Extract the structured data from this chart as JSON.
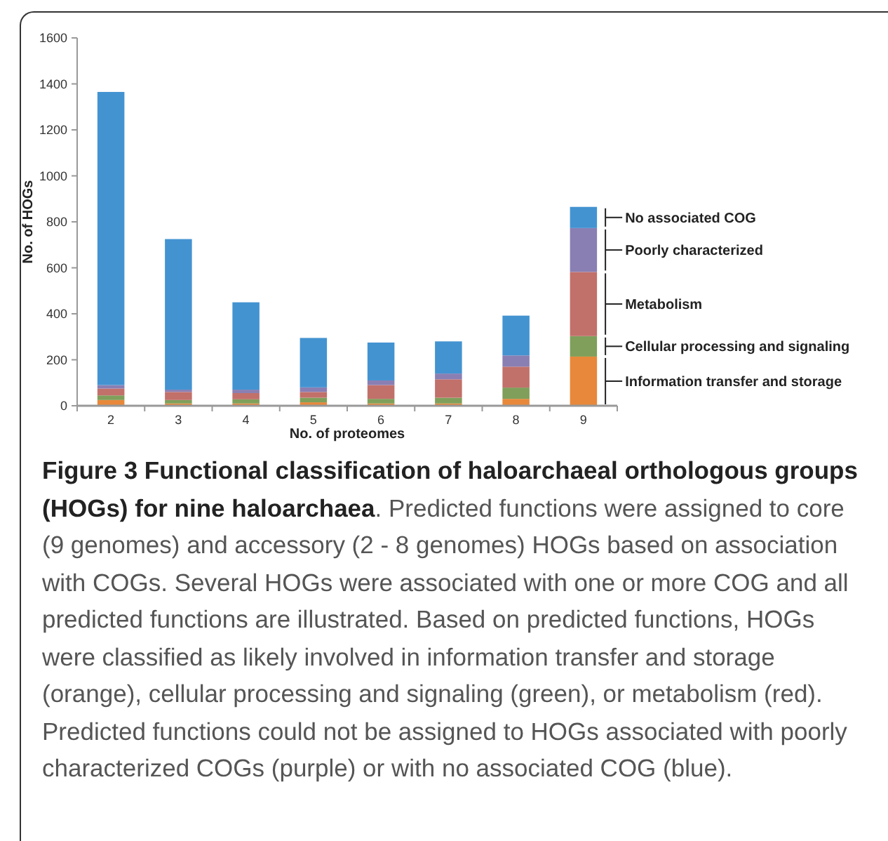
{
  "chart_data": {
    "type": "bar",
    "stacked": true,
    "title": "Figure 3 Functional classification of haloarchaeal orthologous groups (HOGs) for nine haloarchaea",
    "annotations": [
      ". Predicted functions were assigned to core (9 genomes) and accessory (2 - 8 genomes) HOGs based on association with COGs. Several HOGs were associated with one or more COG and all predicted functions are illustrated. Based on predicted functions, HOGs were classified as likely involved in information transfer and storage (orange), cellular processing and signaling (green), or metabolism (red). Predicted functions could not be assigned to HOGs associated with poorly characterized COGs (purple) or with no associated COG (blue)."
    ],
    "xlabel": "No. of proteomes",
    "ylabel": "No. of HOGs",
    "categories": [
      "2",
      "3",
      "4",
      "5",
      "6",
      "7",
      "8",
      "9"
    ],
    "ylim": [
      0,
      1600
    ],
    "yticks": [
      0,
      200,
      400,
      600,
      800,
      1000,
      1200,
      1400,
      1600
    ],
    "legend": "right",
    "grid": false,
    "series": [
      {
        "name": "Information transfer and storage",
        "color": "#e8883a",
        "values": [
          25,
          10,
          10,
          15,
          10,
          10,
          30,
          214
        ]
      },
      {
        "name": "Cellular processing and signaling",
        "color": "#7f9f5a",
        "values": [
          20,
          15,
          18,
          20,
          20,
          25,
          49,
          89
        ]
      },
      {
        "name": "Metabolism",
        "color": "#c2706a",
        "values": [
          30,
          35,
          27,
          25,
          60,
          80,
          91,
          279
        ]
      },
      {
        "name": "Poorly characterized",
        "color": "#8a7fb3",
        "values": [
          15,
          10,
          15,
          20,
          20,
          25,
          49,
          191
        ]
      },
      {
        "name": "No associated COG",
        "color": "#4393d1",
        "values": [
          1275,
          655,
          380,
          215,
          165,
          140,
          173,
          92
        ]
      }
    ]
  }
}
